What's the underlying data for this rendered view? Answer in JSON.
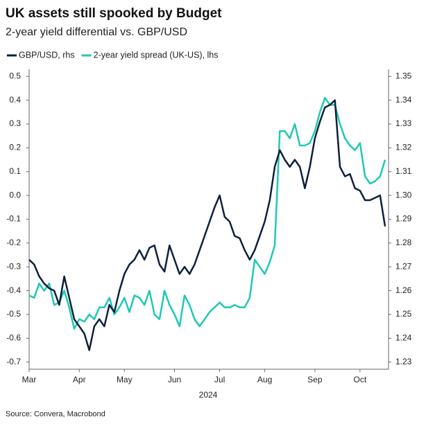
{
  "chart_data": {
    "type": "line",
    "title": "UK assets still spooked by Budget",
    "subtitle": "2-year yield differential vs. GBP/USD",
    "x_label": "2024",
    "source": "Source: Convera, Macrobond",
    "categories": [
      "Mar",
      null,
      null,
      null,
      null,
      null,
      null,
      null,
      null,
      null,
      "Apr",
      null,
      null,
      null,
      null,
      null,
      null,
      null,
      null,
      "May",
      null,
      null,
      null,
      null,
      null,
      null,
      null,
      null,
      null,
      "Jun",
      null,
      null,
      null,
      null,
      null,
      null,
      null,
      null,
      "Jul",
      null,
      null,
      null,
      null,
      null,
      null,
      null,
      null,
      "Aug",
      null,
      null,
      null,
      null,
      null,
      null,
      null,
      null,
      null,
      "Sep",
      null,
      null,
      null,
      null,
      null,
      null,
      null,
      null,
      "Oct",
      null,
      null,
      null,
      null,
      null
    ],
    "series": [
      {
        "name": "GBP/USD, rhs",
        "color": "#0d1f3c",
        "axis": "y2",
        "values": [
          1.273,
          1.271,
          1.266,
          1.263,
          1.261,
          1.26,
          1.254,
          1.266,
          1.257,
          1.248,
          1.245,
          1.242,
          1.235,
          1.245,
          1.248,
          1.245,
          1.254,
          1.251,
          1.26,
          1.267,
          1.271,
          1.273,
          1.277,
          1.273,
          1.278,
          1.279,
          1.271,
          1.268,
          1.279,
          1.273,
          1.267,
          1.27,
          1.267,
          1.271,
          1.277,
          1.283,
          1.289,
          1.295,
          1.3,
          1.291,
          1.289,
          1.283,
          1.282,
          1.277,
          1.273,
          1.277,
          1.283,
          1.289,
          1.298,
          1.312,
          1.319,
          1.315,
          1.312,
          1.315,
          1.312,
          1.303,
          1.312,
          1.324,
          1.331,
          1.337,
          1.338,
          1.34,
          1.312,
          1.308,
          1.309,
          1.303,
          1.302,
          1.298,
          1.298,
          1.299,
          1.3,
          1.287
        ]
      },
      {
        "name": "2-year yield spread (UK-US), lhs",
        "color": "#1ec8b4",
        "values": [
          -0.42,
          -0.43,
          -0.37,
          -0.4,
          -0.37,
          -0.46,
          -0.45,
          -0.4,
          -0.47,
          -0.56,
          -0.52,
          -0.53,
          -0.5,
          -0.52,
          -0.47,
          -0.47,
          -0.43,
          -0.5,
          -0.47,
          -0.43,
          -0.49,
          -0.42,
          -0.43,
          -0.46,
          -0.4,
          -0.5,
          -0.52,
          -0.4,
          -0.46,
          -0.5,
          -0.55,
          -0.42,
          -0.46,
          -0.52,
          -0.55,
          -0.52,
          -0.49,
          -0.47,
          -0.45,
          -0.47,
          -0.47,
          -0.46,
          -0.47,
          -0.47,
          -0.43,
          -0.27,
          -0.3,
          -0.33,
          -0.28,
          -0.21,
          0.27,
          0.27,
          0.24,
          0.3,
          0.21,
          0.21,
          0.22,
          0.27,
          0.35,
          0.41,
          0.38,
          0.38,
          0.3,
          0.24,
          0.21,
          0.19,
          0.22,
          0.08,
          0.05,
          0.06,
          0.08,
          0.15
        ]
      }
    ],
    "ylim": [
      -0.73,
      0.53
    ],
    "yticks": [
      -0.7,
      -0.6,
      -0.5,
      -0.4,
      -0.3,
      -0.2,
      -0.1,
      {
        "value": 0,
        "label": "0.0"
      },
      0.1,
      0.2,
      0.3,
      0.4,
      0.5
    ],
    "y2lim": [
      1.227,
      1.353
    ],
    "y2ticks": [
      1.23,
      1.24,
      1.25,
      1.26,
      1.27,
      1.28,
      1.29,
      {
        "value": 1.3,
        "label": "1.30"
      },
      1.31,
      1.32,
      1.33,
      1.34,
      1.35
    ],
    "grid": false,
    "legend": "top-left"
  }
}
